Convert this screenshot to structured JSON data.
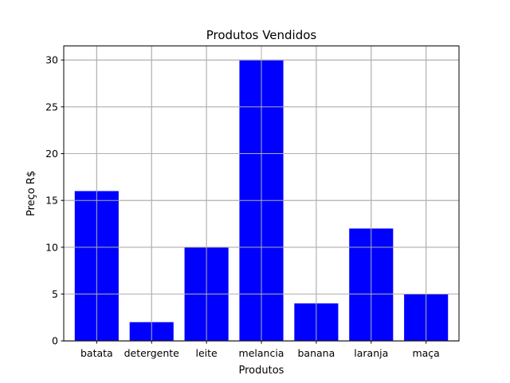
{
  "chart_data": {
    "type": "bar",
    "title": "Produtos Vendidos",
    "xlabel": "Produtos",
    "ylabel": "Preço R$",
    "categories": [
      "batata",
      "detergente",
      "leite",
      "melancia",
      "banana",
      "laranja",
      "maça"
    ],
    "values": [
      16,
      2,
      10,
      30,
      4,
      12,
      5
    ],
    "ylim": [
      0,
      31.5
    ],
    "yticks": [
      0,
      5,
      10,
      15,
      20,
      25,
      30
    ],
    "grid": true,
    "bar_color": "#0000ff",
    "grid_color": "#b0b0b0"
  }
}
